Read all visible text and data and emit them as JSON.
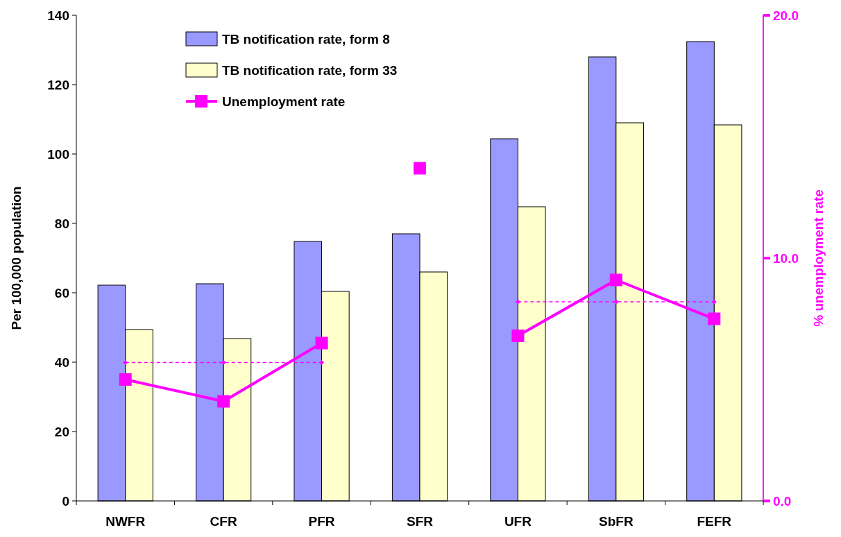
{
  "chart_data": {
    "type": "bar",
    "categories": [
      "NWFR",
      "CFR",
      "PFR",
      "SFR",
      "UFR",
      "SbFR",
      "FEFR"
    ],
    "ylabel": "Per 100,000 population",
    "y2label": "% unemployment rate",
    "ylim": [
      0,
      140
    ],
    "yticks": [
      0,
      20,
      40,
      60,
      80,
      100,
      120,
      140
    ],
    "y2lim": [
      0,
      20
    ],
    "y2ticks": [
      {
        "value": 0,
        "label": "0.0"
      },
      {
        "value": 10,
        "label": "10.0"
      },
      {
        "value": 20,
        "label": "20.0"
      }
    ],
    "grid": false,
    "legend": "top left",
    "series": [
      {
        "name": "TB notification rate, form 8",
        "color": "#9999ff",
        "values": [
          62.2,
          62.6,
          74.8,
          77,
          104.4,
          128,
          132.4
        ]
      },
      {
        "name": "TB notification rate, form 33",
        "color": "#ffffcc",
        "values": [
          49.4,
          46.8,
          60.4,
          66,
          84.8,
          109,
          108.4
        ]
      },
      {
        "name": "Unemployment rate",
        "type": "line",
        "axis": "y2",
        "color": "#ff00ff",
        "marker": "square",
        "line_style": "solid",
        "values": [
          5.0,
          4.1,
          6.5,
          null,
          6.8,
          9.1,
          7.5
        ]
      },
      {
        "type": "scatter",
        "axis": "y2",
        "color": "#ff00ff",
        "marker": "square",
        "values": [
          null,
          null,
          null,
          13.7,
          null,
          null,
          null
        ]
      },
      {
        "type": "line",
        "axis": "y2",
        "color": "#ff00ff",
        "marker": "diamond",
        "line_style": "dashed",
        "values": [
          5.7,
          5.7,
          5.7,
          null,
          null,
          null,
          null
        ]
      },
      {
        "type": "line",
        "axis": "y2",
        "color": "#ff00ff",
        "marker": "diamond",
        "line_style": "dashed",
        "values": [
          null,
          null,
          null,
          null,
          8.2,
          8.2,
          8.2
        ]
      }
    ]
  }
}
